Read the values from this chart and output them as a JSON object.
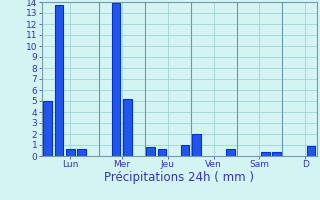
{
  "title": "",
  "xlabel": "Précipitations 24h ( mm )",
  "ylim": [
    0,
    14
  ],
  "yticks": [
    0,
    1,
    2,
    3,
    4,
    5,
    6,
    7,
    8,
    9,
    10,
    11,
    12,
    13,
    14
  ],
  "background_color": "#d4f4f4",
  "bar_color_dark": "#0033cc",
  "bar_color_light": "#2255ee",
  "grid_color": "#99cccc",
  "vline_color": "#6699aa",
  "day_labels": [
    "Lun",
    "Mer",
    "Jeu",
    "Ven",
    "Sam",
    "D"
  ],
  "bar_positions": [
    0,
    1,
    2,
    3,
    4,
    5,
    6,
    7,
    8,
    9,
    10,
    11,
    12,
    13,
    14,
    15,
    16,
    17,
    18,
    19,
    20,
    21,
    22,
    23
  ],
  "bar_values": [
    5.0,
    13.7,
    0.6,
    0.6,
    0.0,
    0.0,
    13.9,
    5.2,
    0.0,
    0.8,
    0.6,
    0.0,
    1.0,
    2.0,
    0.0,
    0.0,
    0.6,
    0.0,
    0.0,
    0.4,
    0.4,
    0.0,
    0.0,
    0.9
  ],
  "day_tick_positions": [
    2.0,
    6.5,
    10.5,
    14.5,
    18.5,
    22.5
  ],
  "vline_positions": [
    4.5,
    8.5,
    12.5,
    16.5,
    20.5
  ],
  "xlabel_fontsize": 8.5,
  "tick_fontsize": 6.5,
  "tick_color": "#3333bb",
  "spine_color": "#7799aa"
}
